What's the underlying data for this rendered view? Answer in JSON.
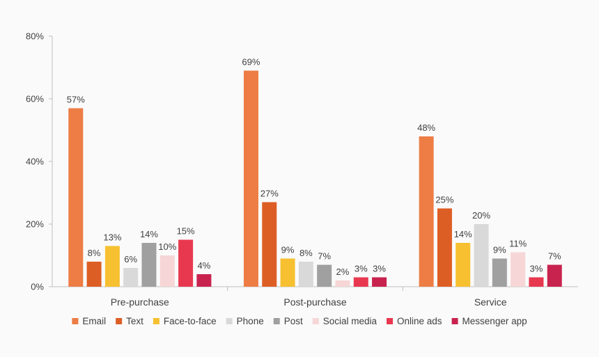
{
  "chart_data": {
    "type": "bar",
    "title": "",
    "xlabel": "",
    "ylabel": "",
    "ylim": [
      0,
      80
    ],
    "yticks": [
      "0%",
      "20%",
      "40%",
      "60%",
      "80%"
    ],
    "categories": [
      "Pre-purchase",
      "Post-purchase",
      "Service"
    ],
    "series": [
      {
        "name": "Email",
        "color": "#ED7D45",
        "values": [
          57,
          69,
          48
        ],
        "labels": [
          "57%",
          "69%",
          "48%"
        ]
      },
      {
        "name": "Text",
        "color": "#DD5E25",
        "values": [
          8,
          27,
          25
        ],
        "labels": [
          "8%",
          "27%",
          "25%"
        ]
      },
      {
        "name": "Face-to-face",
        "color": "#F6C030",
        "values": [
          13,
          9,
          14
        ],
        "labels": [
          "13%",
          "9%",
          "14%"
        ]
      },
      {
        "name": "Phone",
        "color": "#D9D9D9",
        "values": [
          6,
          8,
          20
        ],
        "labels": [
          "6%",
          "8%",
          "20%"
        ]
      },
      {
        "name": "Post",
        "color": "#A0A0A0",
        "values": [
          14,
          7,
          9
        ],
        "labels": [
          "14%",
          "7%",
          "9%"
        ]
      },
      {
        "name": "Social media",
        "color": "#F6D6D6",
        "values": [
          10,
          2,
          11
        ],
        "labels": [
          "10%",
          "2%",
          "11%"
        ]
      },
      {
        "name": "Online ads",
        "color": "#E8384F",
        "values": [
          15,
          3,
          3
        ],
        "labels": [
          "15%",
          "3%",
          "3%"
        ]
      },
      {
        "name": "Messenger app",
        "color": "#C8234F",
        "values": [
          4,
          3,
          7
        ],
        "labels": [
          "4%",
          "3%",
          "7%"
        ]
      }
    ],
    "legend_position": "bottom",
    "grid": false
  }
}
